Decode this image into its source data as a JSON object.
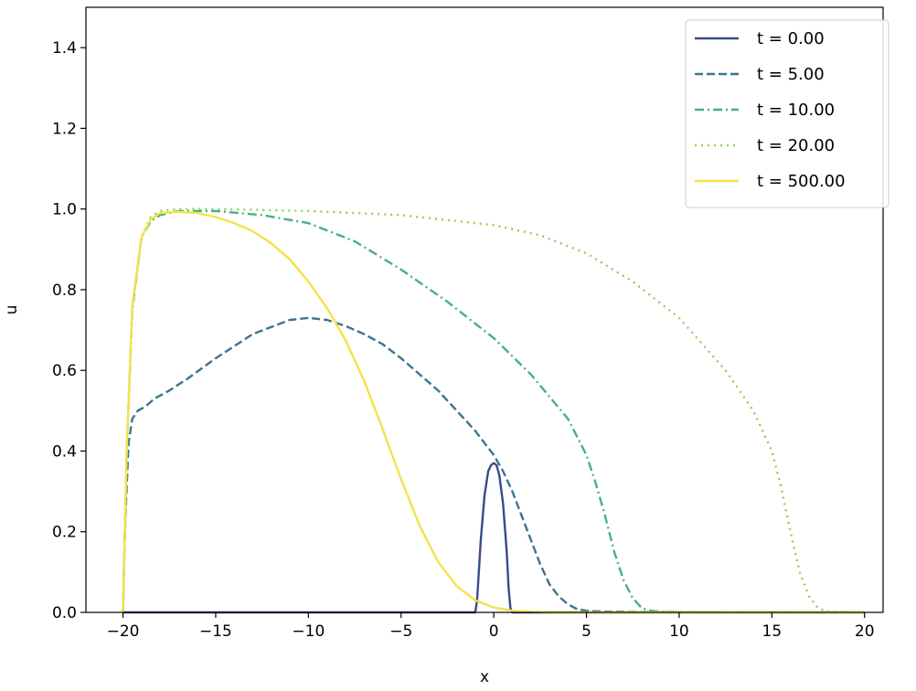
{
  "chart_data": {
    "type": "line",
    "title": "",
    "xlabel": "x",
    "ylabel": "u",
    "xlim": [
      -22,
      21
    ],
    "ylim": [
      0,
      1.5
    ],
    "xticks": [
      -20,
      -15,
      -10,
      -5,
      0,
      5,
      10,
      15,
      20
    ],
    "xtick_labels": [
      "−20",
      "−15",
      "−10",
      "−5",
      "0",
      "5",
      "10",
      "15",
      "20"
    ],
    "yticks": [
      0,
      0.2,
      0.4,
      0.6,
      0.8,
      1.0,
      1.2,
      1.4
    ],
    "ytick_labels": [
      "0.0",
      "0.2",
      "0.4",
      "0.6",
      "0.8",
      "1.0",
      "1.2",
      "1.4"
    ],
    "grid": false,
    "legend_position": "top-right",
    "series": [
      {
        "name": "t = 0.00",
        "color": "#3b4a8a",
        "dash": "solid",
        "x": [
          -20,
          -1,
          -0.9,
          -0.7,
          -0.5,
          -0.3,
          -0.15,
          0,
          0.15,
          0.3,
          0.5,
          0.7,
          0.8,
          0.9,
          1,
          20
        ],
        "y": [
          0,
          0,
          0.03,
          0.18,
          0.29,
          0.35,
          0.365,
          0.37,
          0.365,
          0.34,
          0.27,
          0.15,
          0.06,
          0.01,
          0,
          0
        ]
      },
      {
        "name": "t = 5.00",
        "color": "#3a768f",
        "dash": "dashed",
        "x": [
          -20,
          -19.9,
          -19.7,
          -19.5,
          -19.2,
          -18.8,
          -18.3,
          -17.5,
          -16.5,
          -15,
          -13,
          -11,
          -10,
          -9,
          -8,
          -7,
          -6,
          -5,
          -4,
          -3,
          -2,
          -1,
          0,
          0.5,
          1,
          1.5,
          2,
          2.5,
          3,
          3.5,
          4,
          4.5,
          5,
          6,
          8,
          20
        ],
        "y": [
          0,
          0.2,
          0.42,
          0.48,
          0.5,
          0.51,
          0.53,
          0.55,
          0.58,
          0.63,
          0.69,
          0.725,
          0.73,
          0.725,
          0.71,
          0.69,
          0.665,
          0.63,
          0.59,
          0.55,
          0.5,
          0.45,
          0.39,
          0.35,
          0.3,
          0.24,
          0.18,
          0.12,
          0.07,
          0.04,
          0.02,
          0.008,
          0.004,
          0.002,
          0.001,
          0
        ]
      },
      {
        "name": "t = 10.00",
        "color": "#4aaf84",
        "dash": "dashdot",
        "x": [
          -20,
          -19.8,
          -19.5,
          -19,
          -18.5,
          -18,
          -17,
          -15,
          -12.5,
          -10,
          -7.5,
          -5,
          -2.5,
          0,
          2,
          4,
          5,
          5.5,
          6,
          6.5,
          7,
          7.5,
          8,
          8.5,
          9,
          10,
          20
        ],
        "y": [
          0,
          0.4,
          0.75,
          0.93,
          0.97,
          0.985,
          0.995,
          0.995,
          0.985,
          0.965,
          0.92,
          0.85,
          0.77,
          0.68,
          0.59,
          0.48,
          0.39,
          0.32,
          0.24,
          0.15,
          0.08,
          0.035,
          0.01,
          0.004,
          0.002,
          0.001,
          0
        ]
      },
      {
        "name": "t = 20.00",
        "color": "#8ed05a",
        "dash": "dotted",
        "x": [
          -20,
          -19.8,
          -19.5,
          -19,
          -18.5,
          -18,
          -17,
          -15,
          -10,
          -5,
          0,
          2.5,
          5,
          7.5,
          10,
          12.5,
          14,
          15,
          15.5,
          16,
          16.5,
          17,
          17.5,
          18,
          20
        ],
        "y": [
          0,
          0.4,
          0.76,
          0.93,
          0.98,
          0.995,
          1.0,
          1.0,
          0.995,
          0.985,
          0.96,
          0.935,
          0.89,
          0.82,
          0.73,
          0.6,
          0.5,
          0.4,
          0.31,
          0.2,
          0.1,
          0.04,
          0.01,
          0.003,
          0
        ]
      },
      {
        "name": "t = 500.00",
        "color": "#f5e24a",
        "dash": "solid",
        "x": [
          -20,
          -19.8,
          -19.5,
          -19,
          -18.5,
          -18,
          -17,
          -16,
          -15,
          -14,
          -13,
          -12,
          -11,
          -10,
          -9,
          -8,
          -7,
          -6,
          -5,
          -4,
          -3,
          -2,
          -1,
          0,
          1,
          2,
          3,
          5,
          20
        ],
        "y": [
          0,
          0.4,
          0.76,
          0.93,
          0.975,
          0.99,
          0.993,
          0.99,
          0.98,
          0.965,
          0.945,
          0.915,
          0.875,
          0.82,
          0.755,
          0.675,
          0.575,
          0.455,
          0.33,
          0.215,
          0.125,
          0.065,
          0.03,
          0.012,
          0.004,
          0.0015,
          0.0005,
          0.0002,
          0
        ]
      }
    ]
  }
}
